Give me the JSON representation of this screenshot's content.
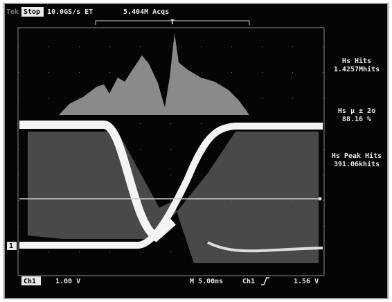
{
  "status_bar": {
    "brand": "Tek",
    "state": "Stop",
    "sample_rate": "10.0GS/s ET",
    "acquisitions": "5.404M Acqs",
    "trigger_marker": "T"
  },
  "measurements": [
    {
      "label": "Hs Hits",
      "value": "1.4257Mhits"
    },
    {
      "label": "Hs μ ± 2σ",
      "value": "88.16 %"
    },
    {
      "label": "Hs Peak Hits",
      "value": "391.06khits"
    }
  ],
  "channel_marker": "1",
  "footer": {
    "channel": "Ch1",
    "scale": "1.00 V",
    "timebase": "M 5.00ns",
    "trigger_source": "Ch1",
    "trigger_level": "1.56 V"
  }
}
